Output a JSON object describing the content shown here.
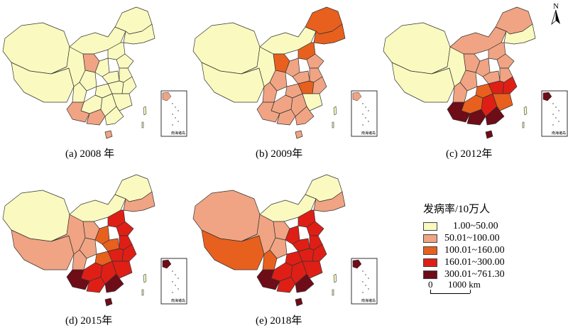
{
  "panels": [
    {
      "caption": "(a) 2008 年",
      "region_classes": [
        0,
        0,
        0,
        0,
        0,
        0,
        1,
        0,
        0,
        0,
        0,
        0,
        0,
        0,
        0,
        0,
        0,
        0,
        1,
        1,
        0,
        0,
        0
      ],
      "inset_class": 1,
      "inset_label": "南海诸岛"
    },
    {
      "caption": "(b) 2009年",
      "region_classes": [
        0,
        0,
        0,
        0,
        2,
        2,
        2,
        2,
        1,
        1,
        1,
        1,
        1,
        1,
        1,
        2,
        1,
        1,
        1,
        1,
        1,
        0,
        1
      ],
      "inset_class": 1,
      "inset_label": "南海诸岛"
    },
    {
      "caption": "(c) 2012年",
      "region_classes": [
        0,
        0,
        0,
        1,
        1,
        0,
        1,
        1,
        1,
        1,
        1,
        1,
        1,
        1,
        2,
        3,
        3,
        2,
        4,
        4,
        3,
        2,
        4
      ],
      "inset_class": 4,
      "inset_label": "南海诸岛"
    },
    {
      "caption": "(d) 2015年",
      "region_classes": [
        0,
        1,
        1,
        0,
        0,
        1,
        1,
        3,
        2,
        1,
        1,
        3,
        2,
        3,
        2,
        3,
        3,
        3,
        4,
        3,
        3,
        3,
        4
      ],
      "inset_class": 4,
      "inset_label": "南海诸岛"
    },
    {
      "caption": "(e) 2018年",
      "region_classes": [
        1,
        2,
        1,
        0,
        0,
        1,
        1,
        3,
        3,
        1,
        2,
        3,
        3,
        3,
        3,
        3,
        3,
        3,
        4,
        3,
        3,
        3,
        4
      ],
      "inset_class": 4,
      "inset_label": "南海诸岛"
    }
  ],
  "legend": {
    "title": "发病率/10万人",
    "classes": [
      {
        "label": "1.00~50.00",
        "color": "#fafac0"
      },
      {
        "label": "50.01~100.00",
        "color": "#f0a483"
      },
      {
        "label": "100.01~160.00",
        "color": "#e8601e"
      },
      {
        "label": "160.01~300.00",
        "color": "#df1f16"
      },
      {
        "label": "300.01~761.30",
        "color": "#6e0c18"
      }
    ]
  },
  "scale_bar": {
    "zero": "0",
    "length_label": "1000 km"
  },
  "north_arrow": {
    "label": "N"
  },
  "map_colors": {
    "outline": "#333333",
    "water": "#ffffff"
  }
}
